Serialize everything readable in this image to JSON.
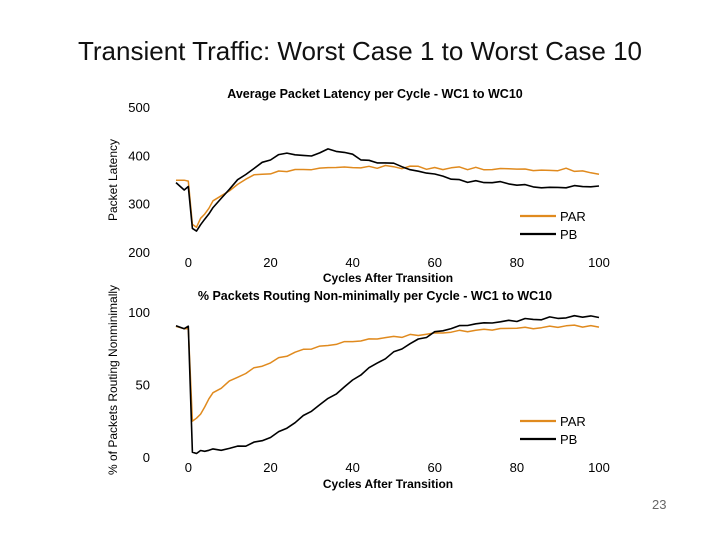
{
  "slide": {
    "title": "Transient Traffic: Worst Case 1 to Worst Case 10",
    "page_number": "23"
  },
  "colors": {
    "PAR": "#e08a1e",
    "PB": "#000000",
    "axis": "#000000"
  },
  "chart_data": [
    {
      "type": "line",
      "title": "Average Packet Latency per Cycle - WC1 to WC10",
      "xlabel": "Cycles After Transition",
      "ylabel": "Packet Latency",
      "xlim": [
        -3,
        100
      ],
      "ylim": [
        200,
        500
      ],
      "xticks": [
        0,
        20,
        40,
        60,
        80,
        100
      ],
      "yticks": [
        200,
        300,
        400,
        500
      ],
      "legend_position": "lower-right",
      "x": [
        -3,
        -1,
        0,
        1,
        2,
        3,
        4,
        5,
        6,
        8,
        10,
        12,
        14,
        16,
        18,
        20,
        22,
        24,
        26,
        28,
        30,
        32,
        34,
        36,
        38,
        40,
        42,
        44,
        46,
        48,
        50,
        52,
        54,
        56,
        58,
        60,
        62,
        64,
        66,
        68,
        70,
        72,
        74,
        76,
        78,
        80,
        82,
        84,
        86,
        88,
        90,
        92,
        94,
        96,
        98,
        100
      ],
      "series": [
        {
          "name": "PAR",
          "values": [
            348,
            350,
            345,
            258,
            252,
            268,
            280,
            290,
            305,
            318,
            325,
            340,
            352,
            358,
            362,
            362,
            366,
            368,
            370,
            370,
            372,
            372,
            375,
            376,
            374,
            376,
            374,
            376,
            375,
            378,
            376,
            374,
            376,
            378,
            372,
            373,
            372,
            374,
            375,
            372,
            374,
            370,
            372,
            371,
            373,
            372,
            370,
            370,
            369,
            368,
            370,
            372,
            367,
            369,
            362,
            362
          ]
        },
        {
          "name": "PB",
          "values": [
            342,
            330,
            335,
            248,
            245,
            255,
            268,
            280,
            290,
            312,
            330,
            348,
            362,
            372,
            385,
            392,
            400,
            405,
            402,
            398,
            400,
            405,
            412,
            410,
            405,
            402,
            392,
            388,
            385,
            385,
            382,
            378,
            370,
            366,
            365,
            360,
            357,
            352,
            348,
            345,
            348,
            342,
            345,
            345,
            340,
            340,
            338,
            335,
            334,
            332,
            335,
            333,
            336,
            337,
            334,
            336
          ]
        }
      ]
    },
    {
      "type": "line",
      "title": "% Packets Routing Non-minimally per Cycle - WC1 to WC10",
      "xlabel": "Cycles After Transition",
      "ylabel": "% of Packets Routing Nonminimally",
      "xlim": [
        -3,
        100
      ],
      "ylim": [
        0,
        100
      ],
      "xticks": [
        0,
        20,
        40,
        60,
        80,
        100
      ],
      "yticks": [
        0,
        50,
        100
      ],
      "legend_position": "lower-right",
      "x": [
        -3,
        -1,
        0,
        1,
        2,
        3,
        4,
        5,
        6,
        8,
        10,
        12,
        14,
        16,
        18,
        20,
        22,
        24,
        26,
        28,
        30,
        32,
        34,
        36,
        38,
        40,
        42,
        44,
        46,
        48,
        50,
        52,
        54,
        56,
        58,
        60,
        62,
        64,
        66,
        68,
        70,
        72,
        74,
        76,
        78,
        80,
        82,
        84,
        86,
        88,
        90,
        92,
        94,
        96,
        98,
        100
      ],
      "series": [
        {
          "name": "PAR",
          "values": [
            90,
            89,
            88,
            25,
            27,
            29,
            35,
            40,
            44,
            48,
            52,
            55,
            58,
            61,
            63,
            65,
            68,
            70,
            72,
            74,
            75,
            76,
            77,
            78,
            79,
            80,
            80,
            81,
            82,
            82,
            83,
            83,
            84,
            84,
            85,
            85,
            86,
            86,
            87,
            87,
            87,
            88,
            88,
            88,
            89,
            89,
            89,
            89,
            89,
            90,
            90,
            90,
            91,
            90,
            90,
            90
          ]
        },
        {
          "name": "PB",
          "values": [
            90,
            89,
            90,
            3,
            3,
            4,
            4,
            5,
            5,
            5,
            6,
            7,
            8,
            10,
            11,
            14,
            17,
            20,
            24,
            28,
            32,
            36,
            40,
            44,
            48,
            53,
            57,
            61,
            65,
            68,
            72,
            75,
            78,
            81,
            83,
            86,
            87,
            89,
            90,
            91,
            92,
            92,
            93,
            93,
            94,
            94,
            95,
            95,
            95,
            96,
            96,
            96,
            97,
            97,
            97,
            96
          ]
        }
      ]
    }
  ]
}
